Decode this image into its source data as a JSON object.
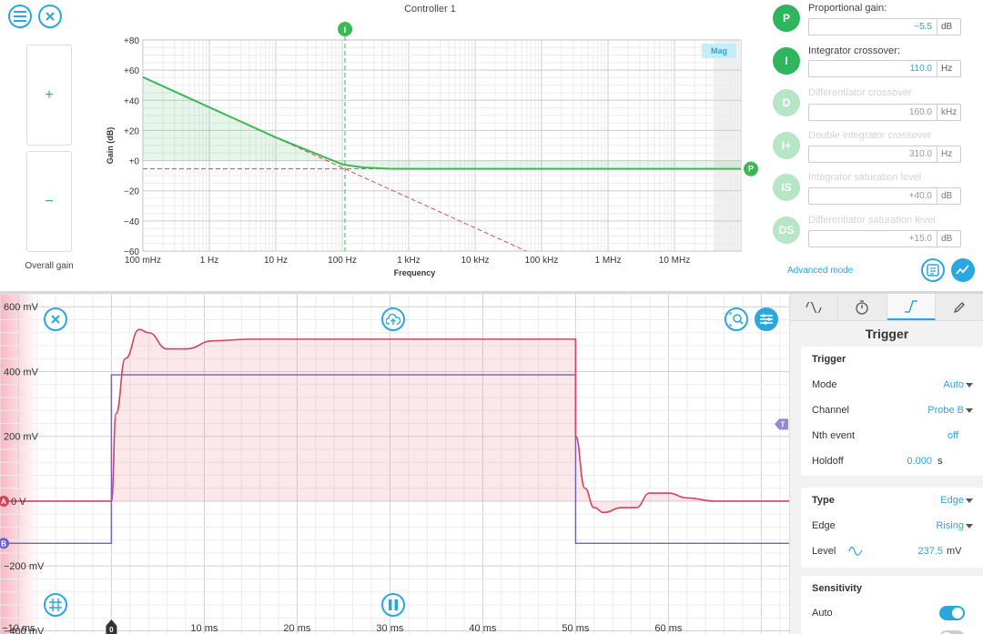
{
  "controller": {
    "title": "Controller 1",
    "overall_gain_label": "Overall gain",
    "increase_label": "+",
    "decrease_label": "−"
  },
  "bode": {
    "ylabel": "Gain (dB)",
    "xlabel": "Frequency",
    "y_ticks": [
      "+80",
      "+60",
      "+40",
      "+20",
      "+0",
      "−20",
      "−40",
      "−60"
    ],
    "x_ticks": [
      "100 mHz",
      "1 Hz",
      "10 Hz",
      "100 Hz",
      "1 kHz",
      "10 kHz",
      "100 kHz",
      "1 MHz",
      "10 MHz"
    ],
    "mag_badge": "Mag",
    "marker_i": "I",
    "marker_p": "P",
    "colors": {
      "trace": "#3cb853",
      "asymptote": "#d64b57",
      "accent": "#2aa7e0"
    }
  },
  "chart_data": [
    {
      "type": "line",
      "title": "",
      "xlabel": "Frequency",
      "ylabel": "Gain (dB)",
      "x_scale": "log",
      "xlim_hz": [
        0.1,
        100000000
      ],
      "ylim": [
        -60,
        80
      ],
      "grid": true,
      "series": [
        {
          "name": "",
          "x_hz": [
            0.1,
            1,
            10,
            100,
            200,
            500,
            1000,
            100000000
          ],
          "y": [
            55.4,
            35.4,
            15.4,
            -2.5,
            -4.5,
            -5.4,
            -5.5,
            -5.5
          ]
        }
      ],
      "asymptotes": {
        "proportional_db": -5.5,
        "integrator_crossover_hz": 110.0
      }
    },
    {
      "type": "line",
      "title": "",
      "xlabel": "",
      "ylabel": "",
      "x_ticks": [
        "−10 ms",
        "0",
        "10 ms",
        "20 ms",
        "30 ms",
        "40 ms",
        "50 ms",
        "60 ms"
      ],
      "y_ticks": [
        "600 mV",
        "400 mV",
        "200 mV",
        "0 V",
        "−200 mV",
        "−400 mV"
      ],
      "xlim_ms": [
        -12,
        73
      ],
      "ylim_mv": [
        -410,
        640
      ],
      "grid": true,
      "series": [
        {
          "name": "A",
          "color": "#d9405a",
          "x_ms": [
            -12,
            0,
            0.5,
            1.5,
            3,
            4,
            6,
            8,
            11,
            15,
            20,
            30,
            40,
            50,
            50,
            51,
            52,
            53,
            55,
            56.5,
            58,
            60,
            62,
            65,
            70,
            73
          ],
          "y_mv": [
            0,
            0,
            270,
            440,
            530,
            520,
            470,
            470,
            495,
            500,
            500,
            500,
            500,
            500,
            200,
            40,
            -20,
            -35,
            -20,
            -20,
            25,
            25,
            10,
            0,
            0,
            0
          ]
        },
        {
          "name": "B",
          "color": "#6a62c8",
          "x_ms": [
            -12,
            0,
            0,
            50,
            50,
            73
          ],
          "y_mv": [
            -130,
            -130,
            390,
            390,
            -130,
            -130
          ]
        }
      ],
      "trigger_level_mv": 237.5
    }
  ],
  "params": [
    {
      "code": "P",
      "label": "Proportional gain:",
      "value": "−5.5",
      "unit": "dB",
      "active": true
    },
    {
      "code": "I",
      "label": "Integrator crossover:",
      "value": "110.0",
      "unit": "Hz",
      "active": true
    },
    {
      "code": "D",
      "label": "Differentiator crossover",
      "value": "160.0",
      "unit": "kHz",
      "active": false
    },
    {
      "code": "I+",
      "label": "Double integrator crossover",
      "value": "310.0",
      "unit": "Hz",
      "active": false
    },
    {
      "code": "IS",
      "label": "Integrator saturation level",
      "value": "+40.0",
      "unit": "dB",
      "active": false
    },
    {
      "code": "DS",
      "label": "Differentiator saturation level",
      "value": "+15.0",
      "unit": "dB",
      "active": false
    }
  ],
  "advanced_mode": "Advanced mode",
  "scope": {
    "channel_a_tag": "A",
    "channel_b_tag": "B",
    "trigger_tag": "T",
    "zero_tag": "0",
    "colors": {
      "a": "#d9405a",
      "b": "#6a62c8",
      "accent": "#2aa7e0"
    }
  },
  "trigger": {
    "title": "Trigger",
    "section_trigger": "Trigger",
    "mode_label": "Mode",
    "mode_value": "Auto",
    "channel_label": "Channel",
    "channel_value": "Probe B",
    "nth_label": "Nth event",
    "nth_value": "off",
    "holdoff_label": "Holdoff",
    "holdoff_value": "0.000",
    "holdoff_unit": "s",
    "type_label": "Type",
    "type_value": "Edge",
    "edge_label": "Edge",
    "edge_value": "Rising",
    "level_label": "Level",
    "level_value": "237.5",
    "level_unit": "mV",
    "section_sensitivity": "Sensitivity",
    "auto_label": "Auto",
    "auto_on": true
  }
}
